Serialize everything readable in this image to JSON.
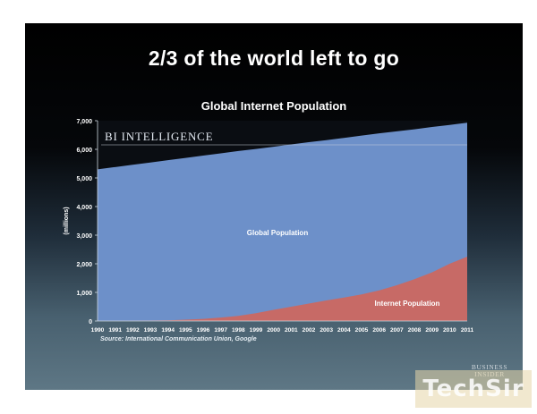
{
  "slide": {
    "headline": "2/3 of the world left to go",
    "source": "Source: International Communication Union, Google",
    "logo": "BUSINESS INSIDER",
    "watermark": "TechSir"
  },
  "chart_data": {
    "type": "area",
    "title": "Global Internet Population",
    "ylabel": "(millions)",
    "xlabel": "",
    "ylim": [
      0,
      7000
    ],
    "yticks": [
      0,
      1000,
      2000,
      3000,
      4000,
      5000,
      6000,
      7000
    ],
    "ytick_labels": [
      "0",
      "1,000",
      "2,000",
      "3,000",
      "4,000",
      "5,000",
      "6,000",
      "7,000"
    ],
    "x": [
      "1990",
      "1991",
      "1992",
      "1993",
      "1994",
      "1995",
      "1996",
      "1997",
      "1998",
      "1999",
      "2000",
      "2001",
      "2002",
      "2003",
      "2004",
      "2005",
      "2006",
      "2007",
      "2008",
      "2009",
      "2010",
      "2011"
    ],
    "grid": false,
    "series": [
      {
        "name": "Global Population",
        "color": "#6d90c9",
        "values": [
          5300,
          5380,
          5460,
          5540,
          5620,
          5700,
          5780,
          5860,
          5940,
          6010,
          6090,
          6170,
          6250,
          6320,
          6400,
          6480,
          6560,
          6630,
          6700,
          6780,
          6850,
          6930
        ]
      },
      {
        "name": "Internet Population",
        "color": "#c76a66",
        "values": [
          3,
          4,
          8,
          15,
          25,
          45,
          75,
          120,
          180,
          275,
          390,
          500,
          610,
          720,
          820,
          930,
          1070,
          1250,
          1460,
          1700,
          2000,
          2250
        ]
      }
    ],
    "annotations": [
      {
        "text": "BI INTELLIGENCE",
        "style": "brand"
      }
    ]
  }
}
